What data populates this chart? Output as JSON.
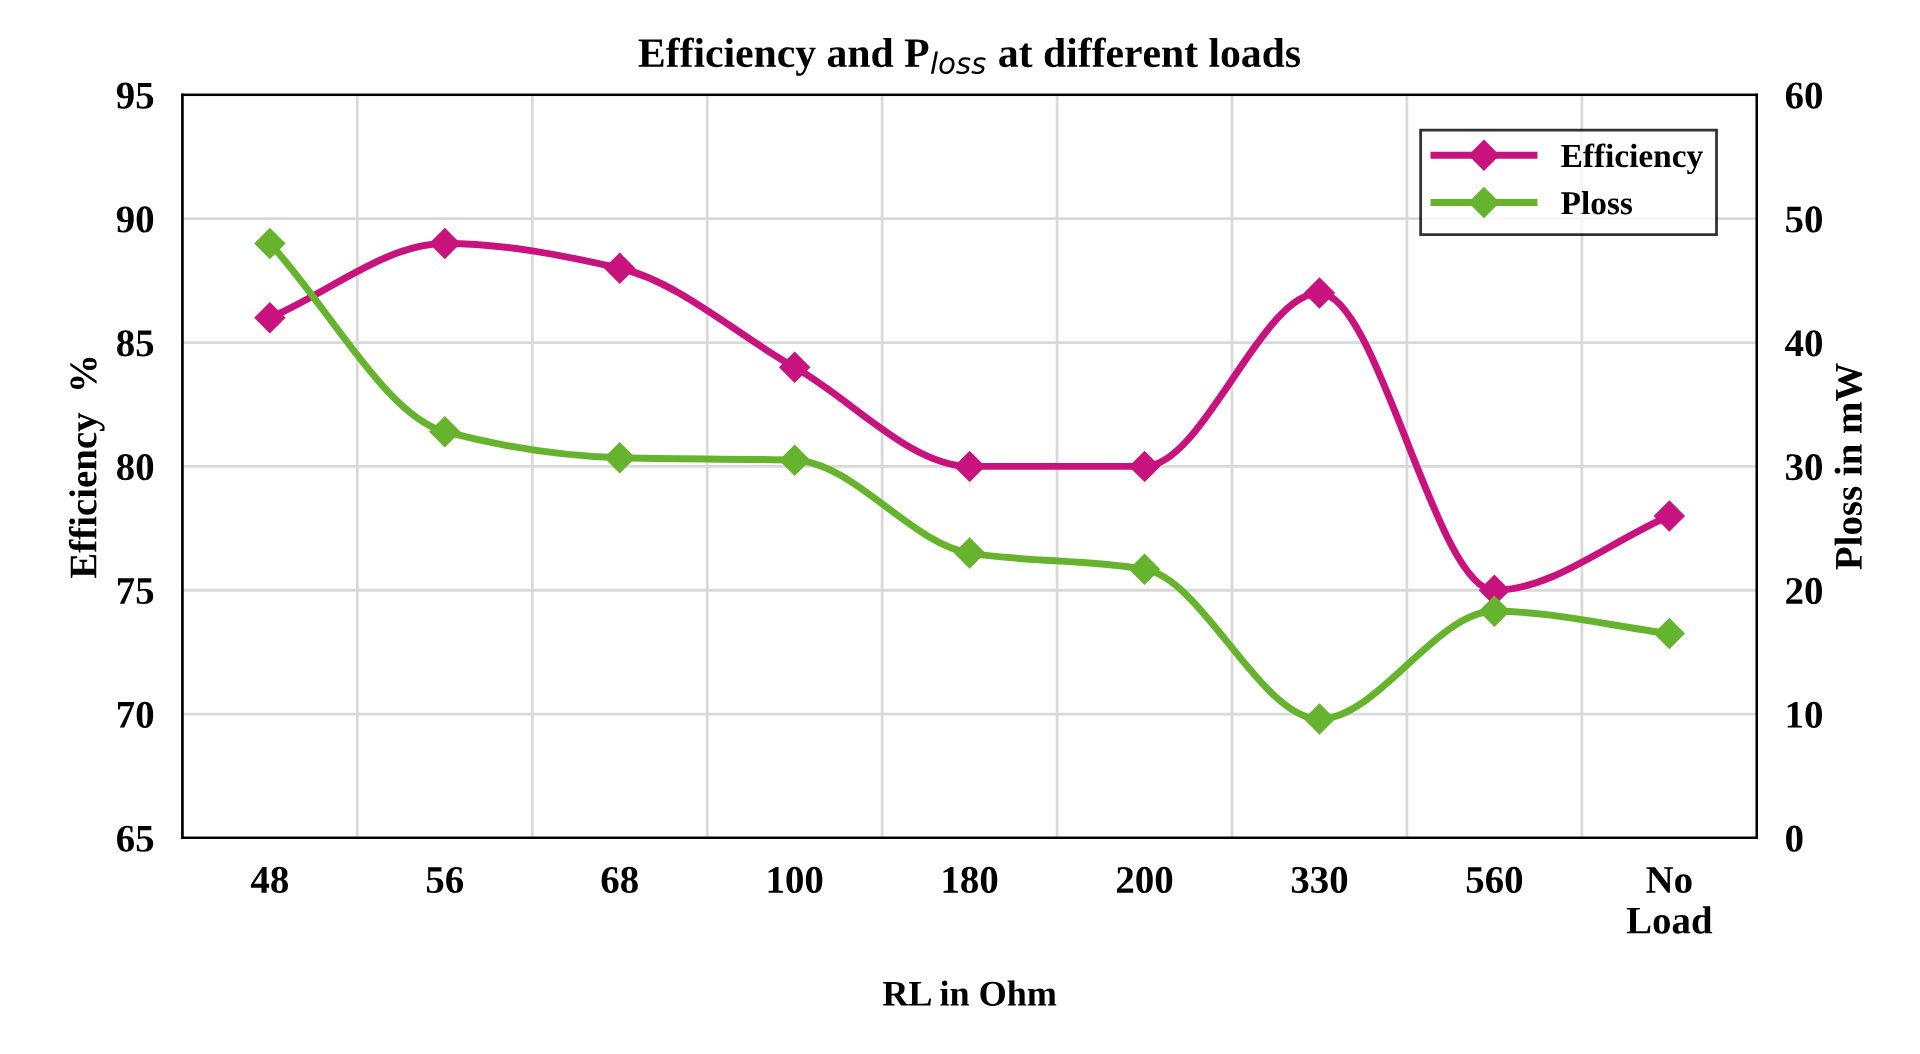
{
  "chart_data": {
    "type": "line",
    "title": "Efficiency and P$_{loss}$ at different loads",
    "xlabel": "RL in Ohm",
    "ylabel": "Efficiency  %",
    "y2label": "Ploss in mW",
    "categories": [
      "48",
      "56",
      "68",
      "100",
      "180",
      "200",
      "330",
      "560",
      "No\nLoad"
    ],
    "series": [
      {
        "name": "Efficiency",
        "color": "#c8137e",
        "values": [
          86,
          89,
          88,
          84,
          80,
          80,
          87,
          75,
          78
        ]
      },
      {
        "name": "Ploss",
        "color": "#66b32e",
        "axis": "y2",
        "values": [
          48,
          32.8,
          30.7,
          30.5,
          23,
          21.7,
          9.6,
          18.3,
          16.5
        ]
      }
    ],
    "ylim": [
      65,
      95
    ],
    "yticks": [
      65,
      70,
      75,
      80,
      85,
      90,
      95
    ],
    "y2lim": [
      0,
      60
    ],
    "y2ticks": [
      0,
      10,
      20,
      30,
      40,
      50,
      60
    ],
    "grid": true,
    "legend": "top right",
    "marker": "diamond",
    "line_style": "solid"
  }
}
